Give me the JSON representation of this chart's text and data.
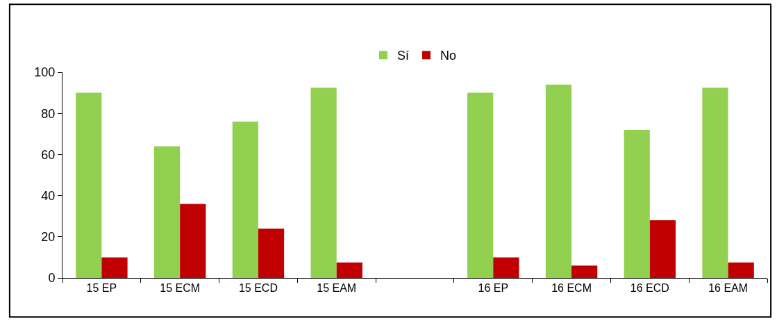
{
  "chart_data": {
    "type": "bar",
    "categories": [
      "15 EP",
      "15 ECM",
      "15 ECD",
      "15 EAM",
      null,
      "16 EP",
      "16 ECM",
      "16 ECD",
      "16 EAM"
    ],
    "series": [
      {
        "name": "Sí",
        "color": "#92d050",
        "values": [
          90,
          64,
          76,
          92.5,
          null,
          90,
          94,
          72,
          92.5
        ]
      },
      {
        "name": "No",
        "color": "#c00000",
        "values": [
          10,
          36,
          24,
          7.5,
          null,
          10,
          6,
          28,
          7.5
        ]
      }
    ],
    "ylim": [
      0,
      100
    ],
    "yticks": [
      0,
      20,
      40,
      60,
      80,
      100
    ],
    "grid": false,
    "legend": "top"
  }
}
